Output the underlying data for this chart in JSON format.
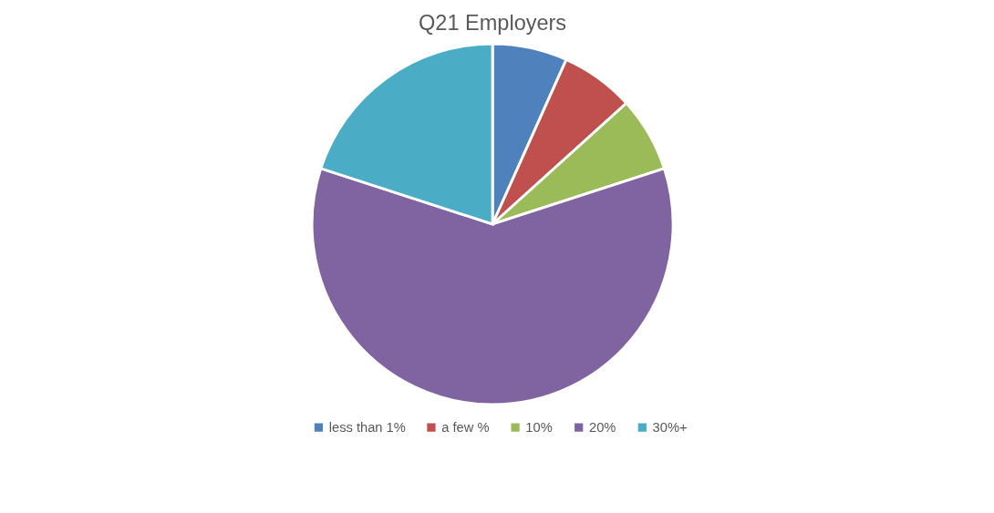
{
  "chart_data": {
    "type": "pie",
    "title": "Q21 Employers",
    "categories": [
      "less than 1%",
      "a few %",
      "10%",
      "20%",
      "30%+"
    ],
    "values": [
      6.7,
      6.6,
      6.7,
      60,
      20
    ],
    "colors": [
      "#4f81bd",
      "#c0504d",
      "#9bbb59",
      "#8064a2",
      "#4bacc6"
    ],
    "legend": "bottom"
  }
}
